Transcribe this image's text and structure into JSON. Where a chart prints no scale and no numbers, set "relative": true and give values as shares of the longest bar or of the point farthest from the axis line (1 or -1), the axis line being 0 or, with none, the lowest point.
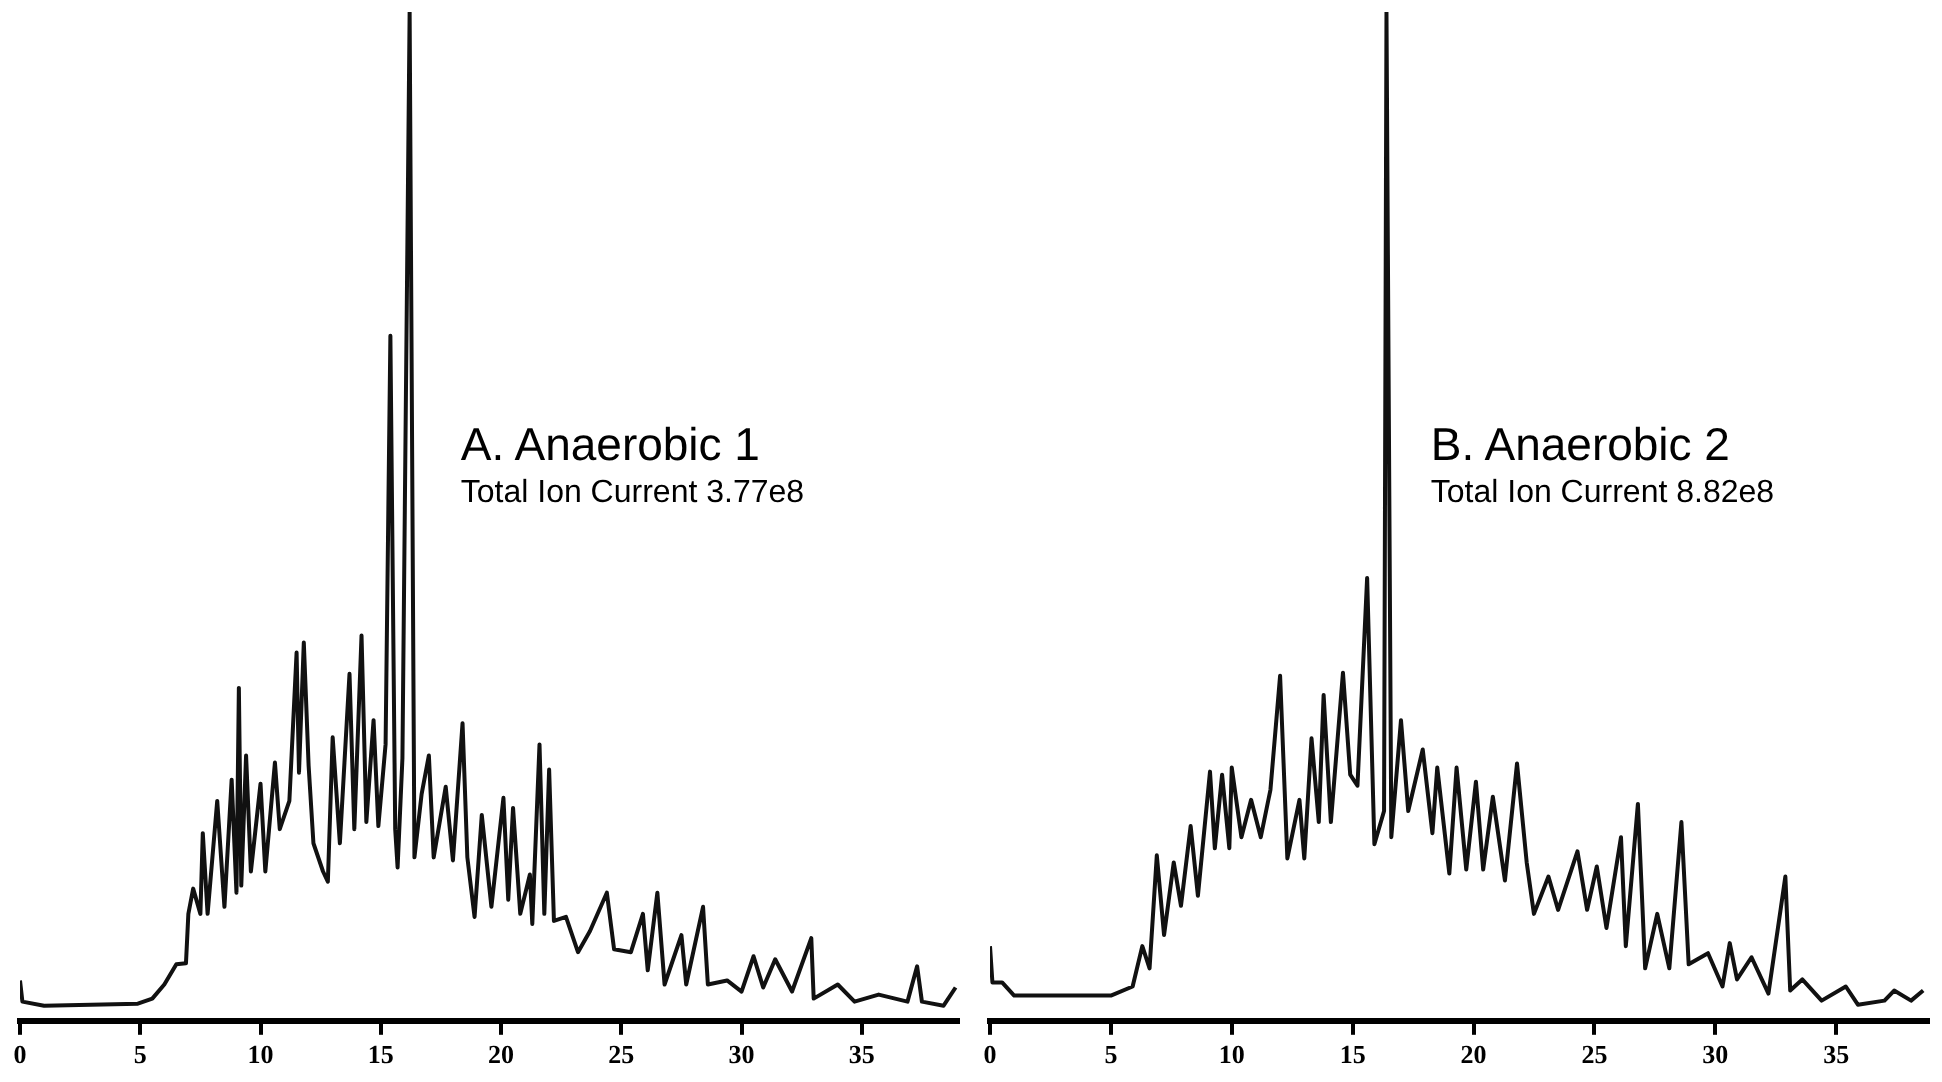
{
  "chart_data": [
    {
      "type": "line",
      "title": "A. Anaerobic 1",
      "subtitle": "Total Ion Current 3.77e8",
      "relative": true,
      "color": "#111111",
      "xlim": [
        0,
        39
      ],
      "xticks": [
        0,
        5,
        10,
        15,
        20,
        25,
        30,
        35
      ],
      "x": [
        0,
        0.1,
        1,
        4.9,
        5.5,
        6,
        6.5,
        6.9,
        7.0,
        7.2,
        7.5,
        7.6,
        7.8,
        8.2,
        8.5,
        8.8,
        9.0,
        9.1,
        9.2,
        9.4,
        9.6,
        10.0,
        10.2,
        10.6,
        10.8,
        11.2,
        11.5,
        11.6,
        11.8,
        12.0,
        12.2,
        12.6,
        12.8,
        13.0,
        13.3,
        13.7,
        13.9,
        14.2,
        14.4,
        14.7,
        14.9,
        15.2,
        15.4,
        15.6,
        15.7,
        15.9,
        16.2,
        16.4,
        16.7,
        17.0,
        17.2,
        17.7,
        18.0,
        18.4,
        18.6,
        18.9,
        19.2,
        19.6,
        20.1,
        20.3,
        20.5,
        20.8,
        21.2,
        21.3,
        21.6,
        21.8,
        22.0,
        22.2,
        22.7,
        23.2,
        23.7,
        24.4,
        24.7,
        25.4,
        25.9,
        26.1,
        26.5,
        26.8,
        27.5,
        27.7,
        28.4,
        28.6,
        29.4,
        30.0,
        30.5,
        30.9,
        31.4,
        32.1,
        32.9,
        33.0,
        34.0,
        34.7,
        35.7,
        36.9,
        37.3,
        37.5,
        38.4,
        38.9
      ],
      "values": [
        0.04,
        0.019,
        0.015,
        0.017,
        0.022,
        0.036,
        0.056,
        0.057,
        0.106,
        0.131,
        0.106,
        0.186,
        0.106,
        0.218,
        0.113,
        0.239,
        0.127,
        0.33,
        0.134,
        0.263,
        0.148,
        0.235,
        0.148,
        0.256,
        0.19,
        0.218,
        0.365,
        0.246,
        0.375,
        0.253,
        0.176,
        0.148,
        0.138,
        0.281,
        0.176,
        0.344,
        0.19,
        0.382,
        0.197,
        0.298,
        0.193,
        0.274,
        0.679,
        0.19,
        0.152,
        0.26,
        1,
        0.162,
        0.225,
        0.263,
        0.162,
        0.232,
        0.159,
        0.295,
        0.162,
        0.103,
        0.204,
        0.113,
        0.221,
        0.12,
        0.211,
        0.106,
        0.145,
        0.096,
        0.274,
        0.106,
        0.249,
        0.099,
        0.103,
        0.068,
        0.089,
        0.127,
        0.071,
        0.068,
        0.106,
        0.05,
        0.127,
        0.036,
        0.085,
        0.036,
        0.113,
        0.036,
        0.04,
        0.029,
        0.064,
        0.033,
        0.061,
        0.029,
        0.082,
        0.022,
        0.036,
        0.019,
        0.026,
        0.019,
        0.054,
        0.019,
        0.015,
        0.033
      ]
    },
    {
      "type": "line",
      "title": "B. Anaerobic 2",
      "subtitle": "Total Ion Current 8.82e8",
      "relative": true,
      "color": "#111111",
      "xlim": [
        0,
        38.8
      ],
      "xticks": [
        0,
        5,
        10,
        15,
        20,
        25,
        30,
        35
      ],
      "x": [
        0,
        0.1,
        0.5,
        1,
        5,
        5.9,
        6.3,
        6.6,
        6.9,
        7.2,
        7.6,
        7.9,
        8.3,
        8.6,
        9.1,
        9.3,
        9.6,
        9.9,
        10.0,
        10.4,
        10.8,
        11.2,
        11.6,
        12.0,
        12.3,
        12.8,
        13.0,
        13.3,
        13.6,
        13.8,
        14.1,
        14.6,
        14.9,
        15.2,
        15.6,
        15.9,
        16.3,
        16.4,
        16.6,
        17.0,
        17.3,
        17.9,
        18.3,
        18.5,
        19.0,
        19.3,
        19.7,
        20.1,
        20.4,
        20.8,
        21.3,
        21.8,
        22.2,
        22.5,
        23.1,
        23.5,
        24.3,
        24.7,
        25.1,
        25.5,
        26.1,
        26.3,
        26.8,
        27.1,
        27.6,
        28.1,
        28.6,
        28.9,
        29.7,
        30.3,
        30.6,
        30.9,
        31.5,
        32.2,
        32.9,
        33.1,
        33.6,
        34.4,
        35.4,
        35.9,
        37.0,
        37.4,
        38.1,
        38.6
      ],
      "values": [
        0.074,
        0.038,
        0.038,
        0.025,
        0.025,
        0.034,
        0.074,
        0.052,
        0.164,
        0.085,
        0.157,
        0.114,
        0.193,
        0.124,
        0.247,
        0.171,
        0.244,
        0.171,
        0.251,
        0.182,
        0.219,
        0.182,
        0.229,
        0.342,
        0.161,
        0.219,
        0.161,
        0.28,
        0.197,
        0.323,
        0.197,
        0.345,
        0.244,
        0.233,
        0.439,
        0.175,
        0.208,
        1,
        0.182,
        0.298,
        0.208,
        0.269,
        0.186,
        0.251,
        0.146,
        0.251,
        0.15,
        0.237,
        0.15,
        0.222,
        0.139,
        0.255,
        0.157,
        0.106,
        0.143,
        0.11,
        0.168,
        0.11,
        0.153,
        0.092,
        0.182,
        0.074,
        0.215,
        0.052,
        0.106,
        0.052,
        0.197,
        0.056,
        0.067,
        0.034,
        0.077,
        0.041,
        0.063,
        0.027,
        0.143,
        0.03,
        0.041,
        0.02,
        0.034,
        0.016,
        0.02,
        0.03,
        0.02,
        0.03
      ]
    }
  ]
}
